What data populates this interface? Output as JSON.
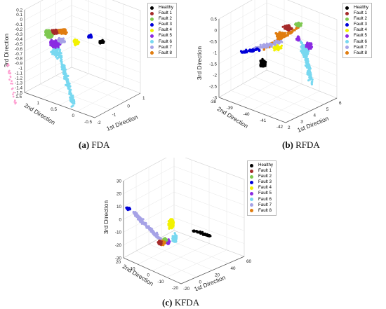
{
  "legend_entries": [
    "Healthy",
    "Fault 1",
    "Fault 2",
    "Fault 3",
    "Fault 4",
    "Fault 5",
    "Fault 6",
    "Fault 7",
    "Fault 8"
  ],
  "colors": {
    "Healthy": "#000000",
    "Fault 1": "#a52a2a",
    "Fault 2": "#7ec850",
    "Fault 3": "#0000d8",
    "Fault 4": "#f2f200",
    "Fault 5": "#8a2be2",
    "Fault 6": "#78d8f0",
    "Fault 7": "#a6a2e6",
    "Fault 8": "#e07d10"
  },
  "captions": [
    {
      "label": "(a)",
      "text": "FDA"
    },
    {
      "label": "(b)",
      "text": "RFDA"
    },
    {
      "label": "(c)",
      "text": "KFDA"
    }
  ],
  "chart_data": [
    {
      "type": "scatter",
      "panel": "a",
      "title": "",
      "xlabel": "1st Direction",
      "ylabel": "2nd Direction",
      "zlabel": "3rd Direction",
      "x_ticks": [
        "-2",
        "-1",
        "0",
        "1"
      ],
      "y_ticks": [
        "-0.5",
        "0",
        "0.5",
        "1",
        "1.5"
      ],
      "z_ticks": [
        "0.2",
        "0.1",
        "0",
        "-0.1",
        "-0.2",
        "-0.3",
        "-0.4",
        "-0.5",
        "-0.6",
        "-0.7",
        "-0.8",
        "-0.9",
        "-1",
        "-1.1",
        "-1.2",
        "-1.3",
        "-1.4",
        "-1.5"
      ],
      "zlim": [
        -1.5,
        0.2
      ],
      "grid": true,
      "legend": "top-right",
      "series": [
        {
          "name": "Healthy",
          "centroid": [
            -0.4,
            0.9,
            -0.1
          ]
        },
        {
          "name": "Fault 1",
          "centroid": [
            0.3,
            0.6,
            0.05
          ]
        },
        {
          "name": "Fault 2",
          "centroid": [
            0.2,
            0.1,
            0.02
          ]
        },
        {
          "name": "Fault 3",
          "centroid": [
            -0.5,
            1.0,
            0.05
          ]
        },
        {
          "name": "Fault 4",
          "centroid": [
            -0.1,
            0.7,
            -0.05
          ]
        },
        {
          "name": "Fault 5",
          "centroid": [
            0.3,
            0.0,
            -0.05
          ]
        },
        {
          "name": "Fault 6",
          "centroid": [
            0.2,
            0.0,
            -0.6
          ]
        },
        {
          "name": "Fault 7",
          "centroid": [
            0.0,
            0.6,
            -0.05
          ]
        },
        {
          "name": "Fault 8",
          "centroid": [
            0.4,
            0.7,
            0.05
          ]
        }
      ]
    },
    {
      "type": "scatter",
      "panel": "b",
      "title": "",
      "xlabel": "1st Direction",
      "ylabel": "2nd Direction",
      "zlabel": "3rd Direction",
      "x_ticks": [
        "2",
        "3",
        "4",
        "5",
        "6"
      ],
      "y_ticks": [
        "-42",
        "-41",
        "-40",
        "-39",
        "-38"
      ],
      "z_ticks": [
        "0.5",
        "0",
        "-0.5",
        "-1",
        "-1.5",
        "-2",
        "-2.5",
        "-3"
      ],
      "zlim": [
        -3,
        0.5
      ],
      "grid": true,
      "legend": "top-right",
      "series": [
        {
          "name": "Healthy",
          "centroid": [
            3.0,
            -40.5,
            -1.5
          ]
        },
        {
          "name": "Fault 1",
          "centroid": [
            4.0,
            -39.5,
            -0.5
          ]
        },
        {
          "name": "Fault 2",
          "centroid": [
            4.5,
            -39.0,
            0.2
          ]
        },
        {
          "name": "Fault 3",
          "centroid": [
            2.5,
            -40.0,
            -0.8
          ]
        },
        {
          "name": "Fault 4",
          "centroid": [
            4.2,
            -39.3,
            -0.2
          ]
        },
        {
          "name": "Fault 5",
          "centroid": [
            4.8,
            -39.5,
            -0.5
          ]
        },
        {
          "name": "Fault 6",
          "centroid": [
            5.0,
            -40.0,
            -1.8
          ]
        },
        {
          "name": "Fault 7",
          "centroid": [
            3.5,
            -40.0,
            -0.6
          ]
        },
        {
          "name": "Fault 8",
          "centroid": [
            3.8,
            -39.5,
            -0.5
          ]
        }
      ]
    },
    {
      "type": "scatter",
      "panel": "c",
      "title": "",
      "xlabel": "1st Direction",
      "ylabel": "2nd Direction",
      "zlabel": "3rd Direction",
      "x_ticks": [
        "-20",
        "0",
        "20",
        "40",
        "60"
      ],
      "y_ticks": [
        "-20",
        "-10",
        "0",
        "10",
        "20"
      ],
      "z_ticks": [
        "30",
        "20",
        "10",
        "0",
        "-10",
        "-20",
        "-30"
      ],
      "zlim": [
        -30,
        30
      ],
      "grid": true,
      "legend": "top-right",
      "series": [
        {
          "name": "Healthy",
          "centroid": [
            50,
            10,
            -5
          ]
        },
        {
          "name": "Fault 1",
          "centroid": [
            0,
            0,
            -12
          ]
        },
        {
          "name": "Fault 2",
          "centroid": [
            5,
            0,
            -10
          ]
        },
        {
          "name": "Fault 3",
          "centroid": [
            -15,
            10,
            10
          ]
        },
        {
          "name": "Fault 4",
          "centroid": [
            5,
            10,
            5
          ]
        },
        {
          "name": "Fault 5",
          "centroid": [
            0,
            0,
            -10
          ]
        },
        {
          "name": "Fault 6",
          "centroid": [
            5,
            5,
            -10
          ]
        },
        {
          "name": "Fault 7",
          "centroid": [
            -5,
            5,
            0
          ]
        },
        {
          "name": "Fault 8",
          "centroid": [
            0,
            0,
            -12
          ]
        }
      ]
    }
  ]
}
